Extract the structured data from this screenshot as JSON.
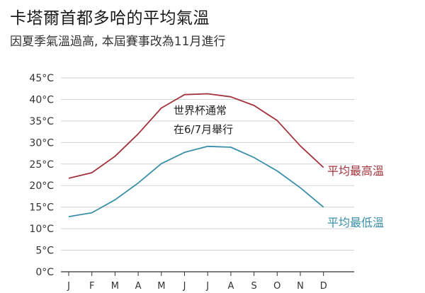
{
  "header": {
    "title": "卡塔爾首都多哈的平均氣溫",
    "subtitle": "因夏季氣溫過高, 本屆賽事改為11月進行"
  },
  "colors": {
    "high": "#a3323c",
    "low": "#3a8fa8",
    "grid": "#d2d2d2",
    "axis": "#333333"
  },
  "chart_data": {
    "type": "line",
    "title": "卡塔爾首都多哈的平均氣溫",
    "subtitle": "因夏季氣溫過高, 本屆賽事改為11月進行",
    "categories": [
      "J",
      "F",
      "M",
      "A",
      "M",
      "J",
      "J",
      "A",
      "S",
      "O",
      "N",
      "D"
    ],
    "y_ticks": [
      "0°C",
      "5°C",
      "10°C",
      "15°C",
      "20°C",
      "25°C",
      "30°C",
      "35°C",
      "40°C",
      "45°C"
    ],
    "ylim": [
      0,
      45
    ],
    "grid": true,
    "series": [
      {
        "name": "平均最高溫",
        "values": [
          21.7,
          23.0,
          26.8,
          32.0,
          38.0,
          41.1,
          41.3,
          40.6,
          38.6,
          35.1,
          29.2,
          24.2
        ]
      },
      {
        "name": "平均最低溫",
        "values": [
          12.8,
          13.7,
          16.7,
          20.6,
          25.1,
          27.7,
          29.1,
          28.9,
          26.5,
          23.4,
          19.5,
          15.0
        ]
      }
    ],
    "annotation": {
      "lines": [
        "世界杯通常",
        "在6/7月舉行"
      ]
    }
  }
}
